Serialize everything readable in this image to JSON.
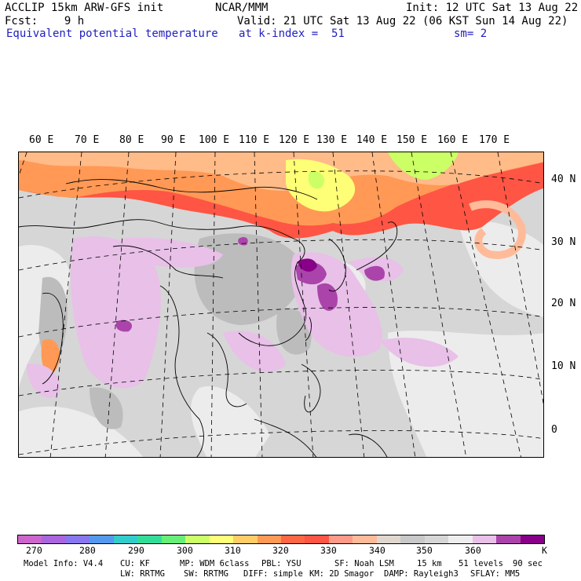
{
  "header": {
    "line1_left": "ACCLIP 15km ARW-GFS init",
    "line1_mid": "NCAR/MMM",
    "line1_right": "Init: 12 UTC Sat 13 Aug 22",
    "line2_left": "Fcst:    9 h",
    "line2_right": "Valid: 21 UTC Sat 13 Aug 22 (06 KST Sun 14 Aug 22)",
    "line3_field": "Equivalent potential temperature",
    "line3_level": "at k-index =  51",
    "line3_smooth": "sm= 2"
  },
  "map": {
    "lon_labels": [
      "60 E",
      "70 E",
      "80 E",
      "90 E",
      "100 E",
      "110 E",
      "120 E",
      "130 E",
      "140 E",
      "150 E",
      "160 E",
      "170 E"
    ],
    "lat_labels": [
      "40 N",
      "30 N",
      "20 N",
      "10 N",
      "0"
    ]
  },
  "colorbar": {
    "colors": [
      "#cc66cc",
      "#aa66dd",
      "#8877ee",
      "#5599ee",
      "#33cccc",
      "#33dd99",
      "#66ee77",
      "#ccff66",
      "#ffff77",
      "#ffcc66",
      "#ff9955",
      "#ff6644",
      "#ff5544",
      "#ff9988",
      "#ffbb99",
      "#e0d8d0",
      "#c8c8c8",
      "#d6d6d6",
      "#eeeeee",
      "#e8c0e8",
      "#aa44aa",
      "#880088"
    ],
    "tick_labels": [
      "270",
      "280",
      "290",
      "300",
      "310",
      "320",
      "330",
      "340",
      "350",
      "360"
    ],
    "unit": "K"
  },
  "footer": {
    "model_info": "Model Info: V4.4",
    "cu": "CU: KF",
    "mp": "MP: WDM 6class",
    "pbl": "PBL: YSU",
    "sf": "SF: Noah LSM",
    "res": "15 km",
    "levels": "51 levels",
    "dt": "90 sec",
    "lw": "LW: RRTMG",
    "sw": "SW: RRTMG",
    "diff": "DIFF: simple",
    "km": "KM: 2D Smagor",
    "damp": "DAMP: Rayleigh3",
    "sflay": "SFLAY: MM5"
  }
}
